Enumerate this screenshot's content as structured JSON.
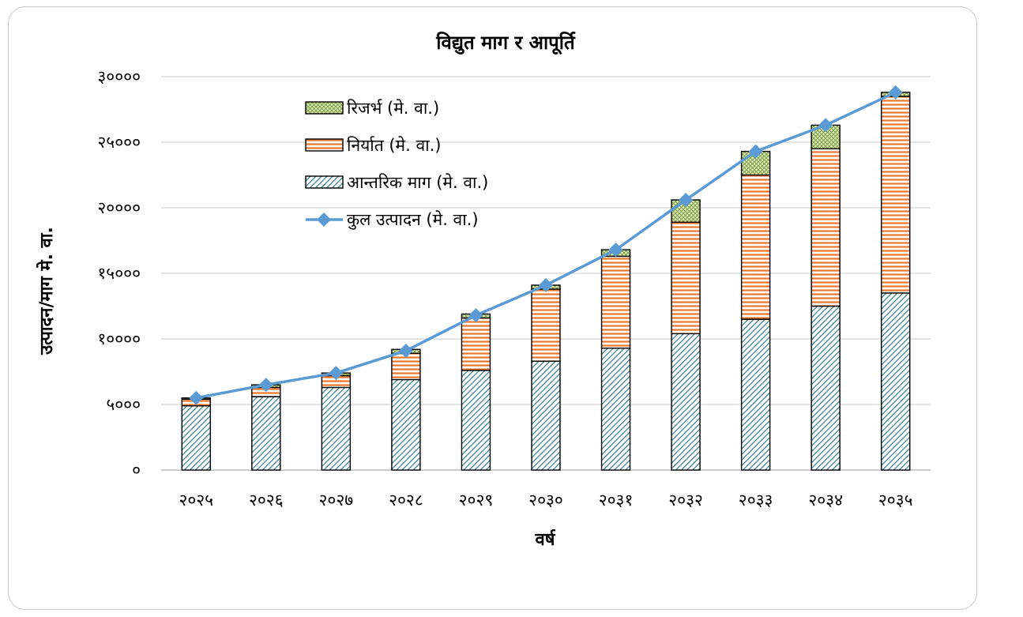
{
  "chart_data": {
    "type": "bar",
    "title": "विद्युत माग र आपूर्ति",
    "xlabel": "वर्ष",
    "ylabel": "उत्पादन/माग मे. वा.",
    "categories": [
      "२०२५",
      "२०२६",
      "२०२७",
      "२०२८",
      "२०२९",
      "२०३०",
      "२०३१",
      "२०३२",
      "२०३३",
      "२०३४",
      "२०३५"
    ],
    "y_tick_labels": [
      "०",
      "५०००",
      "१००००",
      "१५०००",
      "२००००",
      "२५०००",
      "३००००"
    ],
    "ylim": [
      0,
      30000
    ],
    "grid": true,
    "legend_position": "top-left",
    "series": [
      {
        "name": "आन्तरिक माग (मे. वा.)",
        "kind": "stacked-bar",
        "pattern": "diagonal-hatch",
        "color": "#2e7d8c",
        "values": [
          4900,
          5600,
          6300,
          6900,
          7600,
          8300,
          9300,
          10400,
          11500,
          12500,
          13500
        ]
      },
      {
        "name": "निर्यात (मे. वा.)",
        "kind": "stacked-bar",
        "pattern": "horizontal-stripes",
        "color": "#e8762b",
        "values": [
          500,
          700,
          900,
          2000,
          4000,
          5500,
          7000,
          8500,
          11000,
          12000,
          15000
        ]
      },
      {
        "name": "रिजर्भ (मे. वा.)",
        "kind": "stacked-bar",
        "pattern": "cross-hatch",
        "color": "#8fb04a",
        "values": [
          100,
          200,
          200,
          300,
          300,
          300,
          500,
          1700,
          1800,
          1800,
          300
        ]
      },
      {
        "name": "कुल उत्पादन (मे. वा.)",
        "kind": "line",
        "marker": "diamond",
        "color": "#5b9bd5",
        "values": [
          5500,
          6500,
          7400,
          9100,
          11800,
          14100,
          16800,
          20600,
          24300,
          26300,
          28800
        ]
      }
    ]
  }
}
